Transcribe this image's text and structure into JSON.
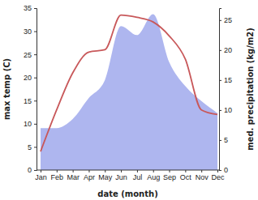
{
  "chart_data": {
    "type": "line",
    "categories": [
      "Jan",
      "Feb",
      "Mar",
      "Apr",
      "May",
      "Jun",
      "Jul",
      "Aug",
      "Sep",
      "Oct",
      "Nov",
      "Dec"
    ],
    "x_label": "date (month)",
    "y_label": "max temp (C)",
    "y2_label": "med. precipitation (kg/m2)",
    "ylim": [
      0,
      35
    ],
    "yticks": [
      0,
      5,
      10,
      15,
      20,
      25,
      30,
      35
    ],
    "y2lim": [
      0,
      27
    ],
    "y2ticks": [
      0,
      5,
      10,
      15,
      20,
      25
    ],
    "series": [
      {
        "name": "med. precipitation",
        "type": "area",
        "axis": "y2",
        "color": "#aeb6ef",
        "values": [
          7,
          7,
          8.5,
          12,
          15,
          24,
          22.5,
          26,
          18,
          14,
          11.5,
          9.5
        ]
      },
      {
        "name": "max temp",
        "type": "line",
        "color": "#c8585a",
        "values": [
          4,
          13,
          21,
          25.5,
          26,
          33.5,
          33,
          32,
          29,
          24,
          13,
          12
        ]
      }
    ]
  }
}
